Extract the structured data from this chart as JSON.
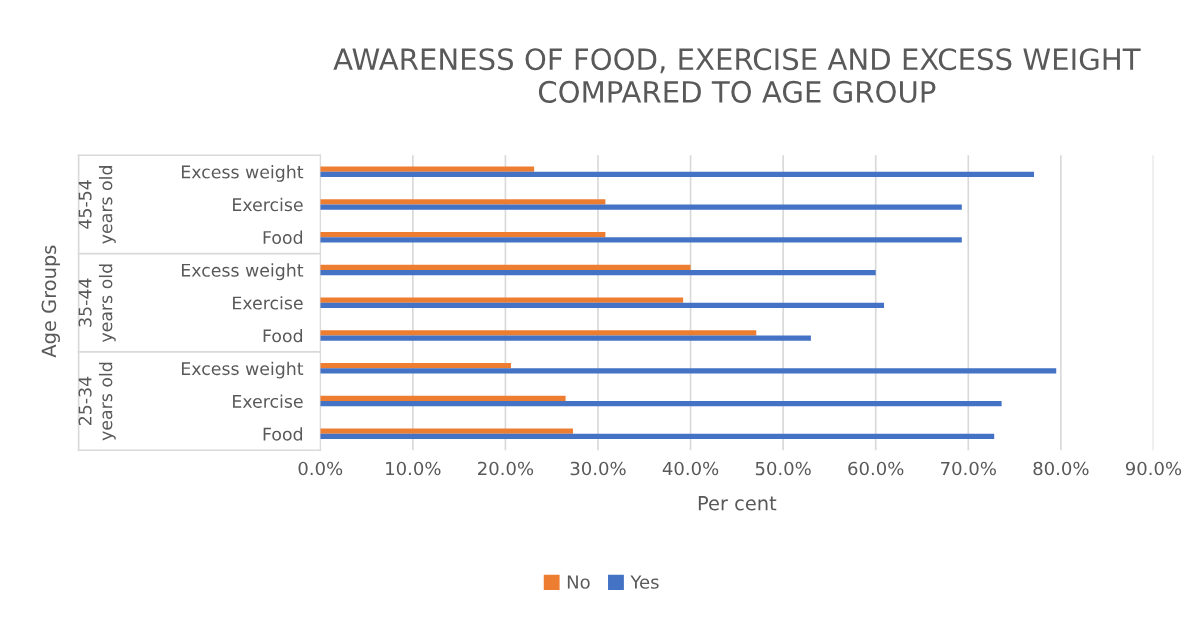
{
  "chart_data": {
    "type": "bar",
    "orientation": "horizontal",
    "title": "AWARENESS OF FOOD, EXERCISE AND EXCESS WEIGHT\nCOMPARED TO AGE GROUP",
    "xlabel": "Per cent",
    "categories": [
      "Excess weight",
      "Exercise",
      "Food",
      "Excess weight",
      "Exercise",
      "Food",
      "Excess weight",
      "Exercise",
      "Food"
    ],
    "annotations": [
      "45-54\nyears old",
      "35-44\nyears old",
      "25-34\nyears old",
      "Age Groups"
    ],
    "series": [
      {
        "name": "No",
        "color": "#ed7d31",
        "values": [
          23.1,
          30.8,
          30.8,
          40.0,
          39.2,
          47.1,
          20.6,
          26.5,
          27.3
        ]
      },
      {
        "name": "Yes",
        "color": "#4472c4",
        "values": [
          77.1,
          69.3,
          69.3,
          60.0,
          60.9,
          53.0,
          79.5,
          73.6,
          72.8
        ]
      }
    ],
    "xlim": [
      0,
      90
    ],
    "xticks": [
      {
        "value": 0,
        "label": "0.0%"
      },
      {
        "value": 10,
        "label": "10.0%"
      },
      {
        "value": 20,
        "label": "20.0%"
      },
      {
        "value": 30,
        "label": "30.0%"
      },
      {
        "value": 40,
        "label": "40.0%"
      },
      {
        "value": 50,
        "label": "50.0%"
      },
      {
        "value": 60,
        "label": "60.0%"
      },
      {
        "value": 70,
        "label": "70.0%"
      },
      {
        "value": 80,
        "label": "80.0%"
      },
      {
        "value": 90,
        "label": "90.0%"
      }
    ],
    "grid": "x",
    "legend": "bottom"
  }
}
